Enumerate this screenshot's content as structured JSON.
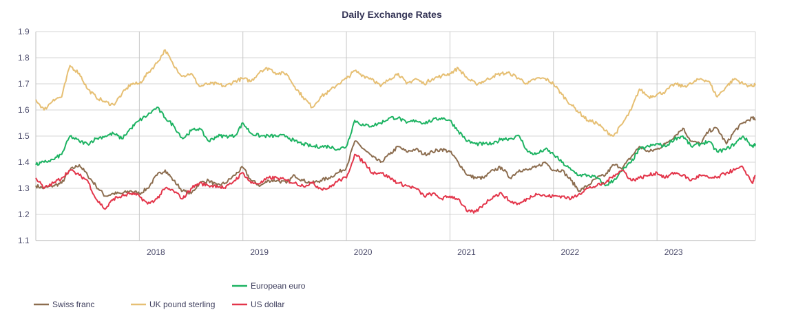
{
  "chart_data": {
    "type": "line",
    "title": "Daily Exchange Rates",
    "xlabel": "",
    "ylabel": "",
    "xlim": [
      2017.0,
      2023.95
    ],
    "ylim": [
      1.1,
      1.9
    ],
    "grid": true,
    "yticks": [
      "1.1",
      "1.2",
      "1.3",
      "1.4",
      "1.5",
      "1.6",
      "1.7",
      "1.8",
      "1.9"
    ],
    "xticks": [
      "2018",
      "2019",
      "2020",
      "2021",
      "2022",
      "2023"
    ],
    "legend_position": "bottom",
    "x": [
      2017.0,
      2017.08,
      2017.17,
      2017.25,
      2017.33,
      2017.42,
      2017.5,
      2017.58,
      2017.67,
      2017.75,
      2017.83,
      2017.92,
      2018.0,
      2018.08,
      2018.17,
      2018.25,
      2018.33,
      2018.42,
      2018.5,
      2018.58,
      2018.67,
      2018.75,
      2018.83,
      2018.92,
      2019.0,
      2019.08,
      2019.17,
      2019.25,
      2019.33,
      2019.42,
      2019.5,
      2019.58,
      2019.67,
      2019.75,
      2019.83,
      2019.92,
      2020.0,
      2020.08,
      2020.17,
      2020.25,
      2020.33,
      2020.42,
      2020.5,
      2020.58,
      2020.67,
      2020.75,
      2020.83,
      2020.92,
      2021.0,
      2021.08,
      2021.17,
      2021.25,
      2021.33,
      2021.42,
      2021.5,
      2021.58,
      2021.67,
      2021.75,
      2021.83,
      2021.92,
      2022.0,
      2022.08,
      2022.17,
      2022.25,
      2022.33,
      2022.42,
      2022.5,
      2022.58,
      2022.67,
      2022.75,
      2022.83,
      2022.92,
      2023.0,
      2023.08,
      2023.17,
      2023.25,
      2023.33,
      2023.42,
      2023.5,
      2023.58,
      2023.67,
      2023.75,
      2023.83,
      2023.92,
      2023.95
    ],
    "series": [
      {
        "name": "Swiss franc",
        "color": "#8c6d4f",
        "values": [
          1.31,
          1.3,
          1.31,
          1.32,
          1.37,
          1.39,
          1.35,
          1.31,
          1.27,
          1.28,
          1.28,
          1.29,
          1.28,
          1.3,
          1.35,
          1.37,
          1.33,
          1.29,
          1.28,
          1.32,
          1.33,
          1.31,
          1.32,
          1.35,
          1.38,
          1.33,
          1.31,
          1.33,
          1.33,
          1.32,
          1.35,
          1.33,
          1.32,
          1.33,
          1.34,
          1.36,
          1.38,
          1.48,
          1.45,
          1.42,
          1.4,
          1.43,
          1.46,
          1.44,
          1.45,
          1.43,
          1.44,
          1.45,
          1.44,
          1.4,
          1.35,
          1.34,
          1.34,
          1.37,
          1.38,
          1.34,
          1.37,
          1.37,
          1.38,
          1.4,
          1.37,
          1.37,
          1.33,
          1.29,
          1.31,
          1.34,
          1.35,
          1.39,
          1.38,
          1.42,
          1.46,
          1.44,
          1.45,
          1.47,
          1.5,
          1.53,
          1.48,
          1.47,
          1.52,
          1.53,
          1.47,
          1.52,
          1.55,
          1.57,
          1.56
        ]
      },
      {
        "name": "UK pound sterling",
        "color": "#e6bf73",
        "values": [
          1.64,
          1.6,
          1.64,
          1.65,
          1.77,
          1.74,
          1.68,
          1.65,
          1.63,
          1.62,
          1.66,
          1.7,
          1.7,
          1.74,
          1.78,
          1.83,
          1.77,
          1.73,
          1.74,
          1.69,
          1.7,
          1.7,
          1.69,
          1.71,
          1.72,
          1.71,
          1.75,
          1.76,
          1.74,
          1.74,
          1.69,
          1.65,
          1.61,
          1.65,
          1.67,
          1.7,
          1.72,
          1.75,
          1.73,
          1.72,
          1.69,
          1.72,
          1.74,
          1.7,
          1.72,
          1.7,
          1.72,
          1.73,
          1.74,
          1.76,
          1.72,
          1.7,
          1.71,
          1.73,
          1.74,
          1.74,
          1.72,
          1.7,
          1.72,
          1.72,
          1.7,
          1.66,
          1.62,
          1.59,
          1.56,
          1.55,
          1.52,
          1.5,
          1.55,
          1.6,
          1.68,
          1.65,
          1.66,
          1.67,
          1.7,
          1.69,
          1.7,
          1.72,
          1.71,
          1.65,
          1.69,
          1.72,
          1.7,
          1.69,
          1.7
        ]
      },
      {
        "name": "European euro",
        "color": "#1db362",
        "values": [
          1.39,
          1.4,
          1.41,
          1.43,
          1.5,
          1.48,
          1.47,
          1.49,
          1.5,
          1.51,
          1.49,
          1.53,
          1.56,
          1.58,
          1.61,
          1.57,
          1.54,
          1.49,
          1.52,
          1.53,
          1.48,
          1.5,
          1.5,
          1.5,
          1.55,
          1.51,
          1.5,
          1.5,
          1.5,
          1.5,
          1.48,
          1.47,
          1.46,
          1.46,
          1.46,
          1.45,
          1.46,
          1.56,
          1.54,
          1.54,
          1.55,
          1.57,
          1.57,
          1.55,
          1.56,
          1.55,
          1.56,
          1.57,
          1.56,
          1.52,
          1.48,
          1.47,
          1.47,
          1.47,
          1.49,
          1.49,
          1.5,
          1.44,
          1.43,
          1.45,
          1.43,
          1.4,
          1.37,
          1.35,
          1.35,
          1.34,
          1.31,
          1.33,
          1.37,
          1.4,
          1.45,
          1.46,
          1.47,
          1.46,
          1.49,
          1.5,
          1.46,
          1.47,
          1.48,
          1.44,
          1.45,
          1.47,
          1.5,
          1.46,
          1.47
        ]
      },
      {
        "name": "US dollar",
        "color": "#e3354a",
        "values": [
          1.34,
          1.3,
          1.32,
          1.34,
          1.37,
          1.35,
          1.33,
          1.26,
          1.22,
          1.26,
          1.27,
          1.28,
          1.27,
          1.24,
          1.26,
          1.3,
          1.29,
          1.26,
          1.3,
          1.32,
          1.31,
          1.31,
          1.3,
          1.33,
          1.36,
          1.32,
          1.32,
          1.34,
          1.34,
          1.33,
          1.32,
          1.31,
          1.32,
          1.3,
          1.3,
          1.33,
          1.34,
          1.43,
          1.4,
          1.36,
          1.36,
          1.34,
          1.32,
          1.31,
          1.3,
          1.27,
          1.28,
          1.26,
          1.27,
          1.26,
          1.21,
          1.21,
          1.24,
          1.27,
          1.28,
          1.25,
          1.24,
          1.26,
          1.28,
          1.27,
          1.27,
          1.27,
          1.26,
          1.28,
          1.3,
          1.31,
          1.32,
          1.35,
          1.37,
          1.33,
          1.34,
          1.35,
          1.36,
          1.34,
          1.36,
          1.35,
          1.33,
          1.35,
          1.34,
          1.34,
          1.36,
          1.37,
          1.38,
          1.32,
          1.35
        ]
      }
    ]
  },
  "legend": {
    "items": [
      {
        "label": "European euro",
        "color": "#1db362"
      },
      {
        "label": "Swiss franc",
        "color": "#8c6d4f"
      },
      {
        "label": "UK pound sterling",
        "color": "#e6bf73"
      },
      {
        "label": "US dollar",
        "color": "#e3354a"
      }
    ]
  }
}
